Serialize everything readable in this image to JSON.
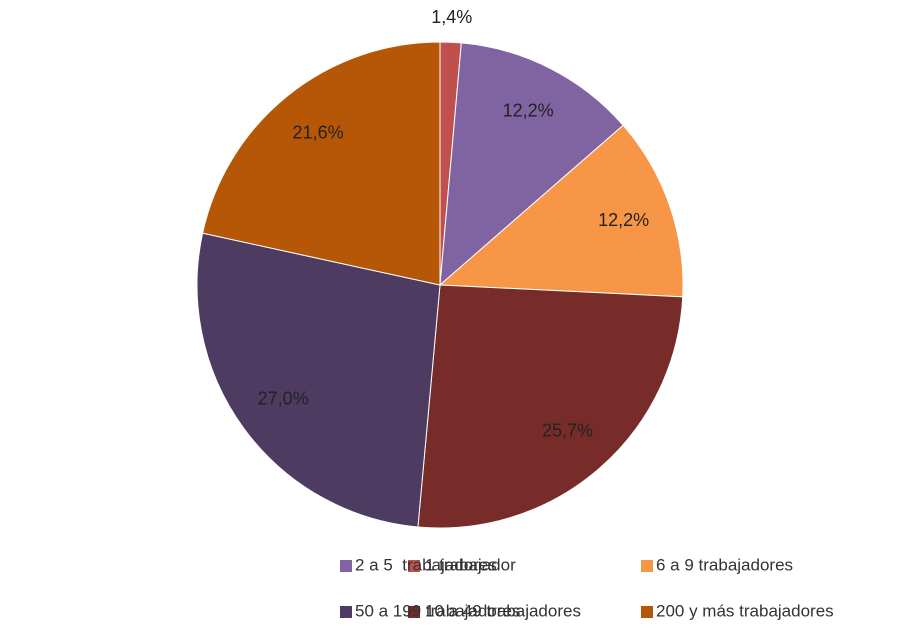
{
  "chart_data": {
    "type": "pie",
    "categories": [
      "1 trabajador",
      "2 a 5  trabajadores",
      "6 a 9 trabajadores",
      "10 a 49 trabajadores",
      "50 a 199 trabajadores",
      "200 y más trabajadores"
    ],
    "values": [
      1.4,
      12.2,
      12.2,
      25.7,
      27.0,
      21.6
    ],
    "value_labels": [
      "1,4%",
      "12,2%",
      "12,2%",
      "25,7%",
      "27,0%",
      "21,6%"
    ],
    "colors": [
      "#c0504d",
      "#8064a2",
      "#f79646",
      "#772c2a",
      "#4d3b62",
      "#b65708"
    ],
    "legend": "bottom"
  }
}
